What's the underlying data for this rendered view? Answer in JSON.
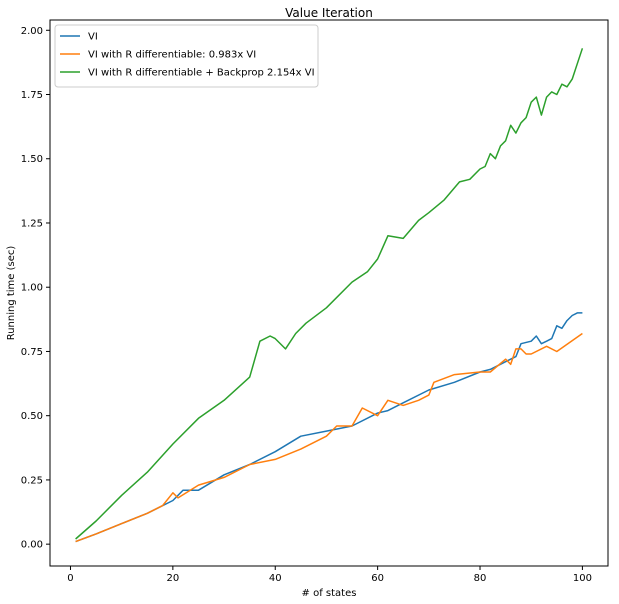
{
  "chart_data": {
    "type": "line",
    "title": "Value Iteration",
    "xlabel": "# of states",
    "ylabel": "Running time (sec)",
    "xlim": [
      -4,
      105
    ],
    "ylim": [
      -0.085,
      2.04
    ],
    "xticks": [
      0,
      20,
      40,
      60,
      80,
      100
    ],
    "xtick_labels": [
      "0",
      "20",
      "40",
      "60",
      "80",
      "100"
    ],
    "yticks": [
      0,
      0.25,
      0.5,
      0.75,
      1.0,
      1.25,
      1.5,
      1.75,
      2.0
    ],
    "ytick_labels": [
      "0.00",
      "0.25",
      "0.50",
      "0.75",
      "1.00",
      "1.25",
      "1.50",
      "1.75",
      "2.00"
    ],
    "grid": false,
    "legend_position": "top-left",
    "series": [
      {
        "name": "VI",
        "color": "#1f77b4",
        "x": [
          1,
          5,
          10,
          15,
          20,
          22,
          25,
          30,
          35,
          40,
          45,
          50,
          55,
          60,
          62,
          65,
          70,
          75,
          80,
          82,
          85,
          87,
          88,
          90,
          91,
          92,
          93,
          94,
          95,
          96,
          97,
          98,
          99,
          100
        ],
        "y": [
          0.01,
          0.04,
          0.08,
          0.12,
          0.17,
          0.21,
          0.21,
          0.27,
          0.31,
          0.36,
          0.42,
          0.44,
          0.46,
          0.51,
          0.52,
          0.55,
          0.6,
          0.63,
          0.67,
          0.68,
          0.71,
          0.73,
          0.78,
          0.79,
          0.81,
          0.78,
          0.79,
          0.8,
          0.85,
          0.84,
          0.87,
          0.89,
          0.9,
          0.9
        ]
      },
      {
        "name": "VI with R differentiable: 0.983x VI",
        "color": "#ff7f0e",
        "x": [
          1,
          5,
          10,
          15,
          18,
          20,
          21,
          25,
          30,
          35,
          40,
          45,
          50,
          52,
          55,
          57,
          60,
          62,
          65,
          68,
          70,
          71,
          75,
          80,
          82,
          85,
          86,
          87,
          88,
          89,
          90,
          93,
          95,
          100
        ],
        "y": [
          0.01,
          0.04,
          0.08,
          0.12,
          0.15,
          0.2,
          0.18,
          0.23,
          0.26,
          0.31,
          0.33,
          0.37,
          0.42,
          0.46,
          0.46,
          0.53,
          0.5,
          0.56,
          0.54,
          0.56,
          0.58,
          0.63,
          0.66,
          0.67,
          0.67,
          0.72,
          0.7,
          0.76,
          0.76,
          0.74,
          0.74,
          0.77,
          0.75,
          0.82
        ]
      },
      {
        "name": "VI with R differentiable + Backprop 2.154x VI",
        "color": "#2ca02c",
        "x": [
          1,
          5,
          10,
          15,
          20,
          25,
          30,
          35,
          37,
          39,
          40,
          42,
          44,
          46,
          50,
          55,
          58,
          60,
          62,
          65,
          68,
          70,
          73,
          76,
          78,
          80,
          81,
          82,
          83,
          84,
          85,
          86,
          87,
          88,
          89,
          90,
          91,
          92,
          93,
          94,
          95,
          96,
          97,
          98,
          99,
          100
        ],
        "y": [
          0.02,
          0.09,
          0.19,
          0.28,
          0.39,
          0.49,
          0.56,
          0.65,
          0.79,
          0.81,
          0.8,
          0.76,
          0.82,
          0.86,
          0.92,
          1.02,
          1.06,
          1.11,
          1.2,
          1.19,
          1.26,
          1.29,
          1.34,
          1.41,
          1.42,
          1.46,
          1.47,
          1.52,
          1.5,
          1.55,
          1.57,
          1.63,
          1.6,
          1.64,
          1.66,
          1.72,
          1.74,
          1.67,
          1.74,
          1.76,
          1.75,
          1.79,
          1.78,
          1.81,
          1.87,
          1.93
        ]
      }
    ]
  }
}
